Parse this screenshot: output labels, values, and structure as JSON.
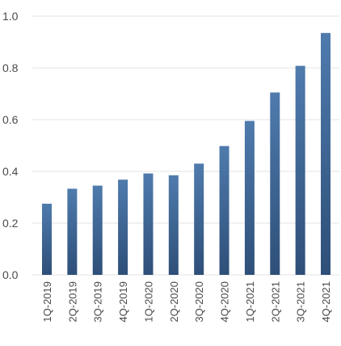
{
  "chart_data": {
    "type": "bar",
    "title": "",
    "xlabel": "",
    "ylabel": "",
    "ylim": [
      0,
      1.0
    ],
    "yticks": [
      "0.0",
      "0.2",
      "0.4",
      "0.6",
      "0.8",
      "1.0"
    ],
    "grid": true,
    "categories": [
      "1Q-2019",
      "2Q-2019",
      "3Q-2019",
      "4Q-2019",
      "1Q-2020",
      "2Q-2020",
      "3Q-2020",
      "4Q-2020",
      "1Q-2021",
      "2Q-2021",
      "3Q-2021",
      "4Q-2021"
    ],
    "values": [
      0.275,
      0.333,
      0.345,
      0.368,
      0.392,
      0.385,
      0.43,
      0.498,
      0.595,
      0.705,
      0.808,
      0.935
    ],
    "colors": {
      "bar_top": "#4f7bad",
      "bar_bottom": "#2e4f78",
      "grid": "#e3e3e3",
      "text": "#4a4a4a"
    }
  }
}
